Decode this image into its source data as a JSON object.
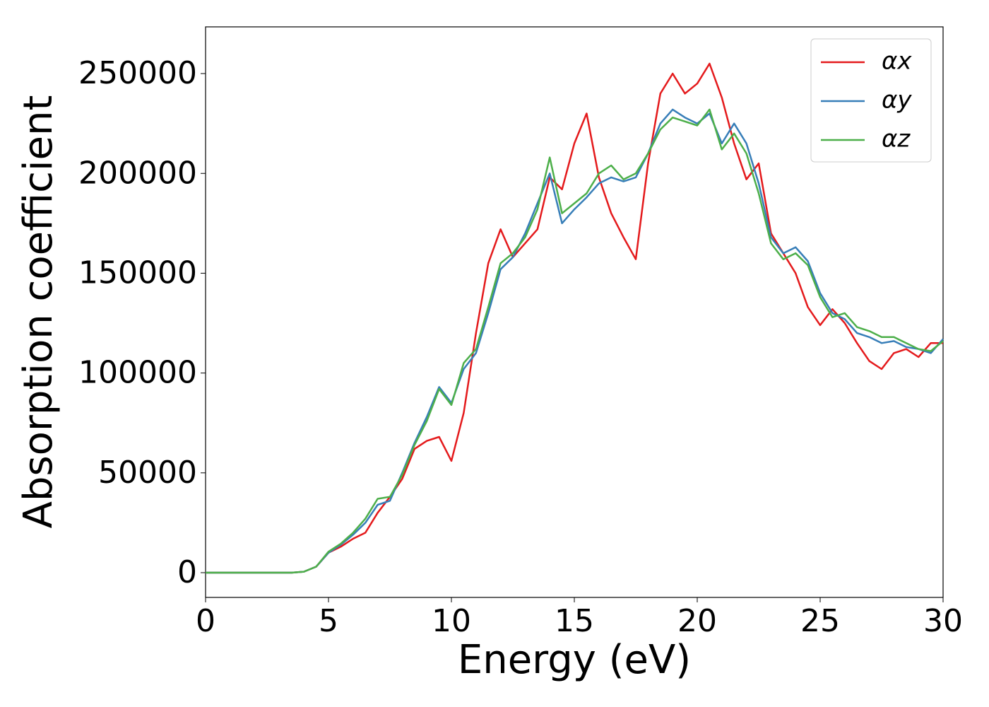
{
  "chart_data": {
    "type": "line",
    "x_label": "Energy (eV)",
    "y_label": "Absorption coefficient",
    "x": [
      0,
      0.5,
      1,
      1.5,
      2,
      2.5,
      3,
      3.5,
      4,
      4.5,
      5,
      5.5,
      6,
      6.5,
      7,
      7.5,
      8,
      8.5,
      9,
      9.5,
      10,
      10.5,
      11,
      11.5,
      12,
      12.5,
      13,
      13.5,
      14,
      14.5,
      15,
      15.5,
      16,
      16.5,
      17,
      17.5,
      18,
      18.5,
      19,
      19.5,
      20,
      20.5,
      21,
      21.5,
      22,
      22.5,
      23,
      23.5,
      24,
      24.5,
      25,
      25.5,
      26,
      26.5,
      27,
      27.5,
      28,
      28.5,
      29,
      29.5,
      30
    ],
    "series": [
      {
        "name": "αx",
        "color": "#e41a1c",
        "values": [
          0,
          0,
          0,
          0,
          0,
          0,
          0,
          0,
          500,
          3000,
          10000,
          13000,
          17000,
          20000,
          30000,
          38000,
          47000,
          62000,
          66000,
          68000,
          56000,
          80000,
          120000,
          155000,
          172000,
          158000,
          165000,
          172000,
          198000,
          192000,
          215000,
          230000,
          198000,
          180000,
          168000,
          157000,
          205000,
          240000,
          250000,
          240000,
          245000,
          255000,
          238000,
          215000,
          197000,
          205000,
          170000,
          160000,
          150000,
          133000,
          124000,
          132000,
          125000,
          115000,
          106000,
          102000,
          110000,
          112000,
          108000,
          115000,
          115000
        ]
      },
      {
        "name": "αy",
        "color": "#377eb8",
        "values": [
          0,
          0,
          0,
          0,
          0,
          0,
          0,
          0,
          500,
          3000,
          10000,
          14000,
          19000,
          25000,
          34000,
          36000,
          50000,
          65000,
          78000,
          93000,
          85000,
          102000,
          110000,
          130000,
          152000,
          158000,
          170000,
          185000,
          200000,
          175000,
          182000,
          188000,
          195000,
          198000,
          196000,
          198000,
          210000,
          225000,
          232000,
          228000,
          225000,
          230000,
          215000,
          225000,
          215000,
          195000,
          168000,
          160000,
          163000,
          156000,
          140000,
          130000,
          127000,
          120000,
          118000,
          115000,
          116000,
          113000,
          112000,
          110000,
          117000
        ]
      },
      {
        "name": "αz",
        "color": "#4daf4a",
        "values": [
          0,
          0,
          0,
          0,
          0,
          0,
          0,
          0,
          500,
          3000,
          10500,
          14500,
          20000,
          27000,
          37000,
          38000,
          49000,
          64000,
          76000,
          92000,
          84000,
          105000,
          112000,
          133000,
          155000,
          160000,
          168000,
          182000,
          208000,
          180000,
          185000,
          190000,
          200000,
          204000,
          197000,
          200000,
          210000,
          222000,
          228000,
          226000,
          224000,
          232000,
          212000,
          220000,
          210000,
          190000,
          165000,
          157000,
          160000,
          154000,
          138000,
          128000,
          130000,
          123000,
          121000,
          118000,
          118000,
          115000,
          112000,
          111000,
          116000
        ]
      }
    ],
    "xlim": [
      0,
      30
    ],
    "xticks": [
      0,
      5,
      10,
      15,
      20,
      25,
      30
    ],
    "ylim": [
      -12400,
      273400
    ],
    "yticks": [
      0,
      50000,
      100000,
      150000,
      200000,
      250000
    ],
    "grid": false,
    "legend": "upper right"
  }
}
